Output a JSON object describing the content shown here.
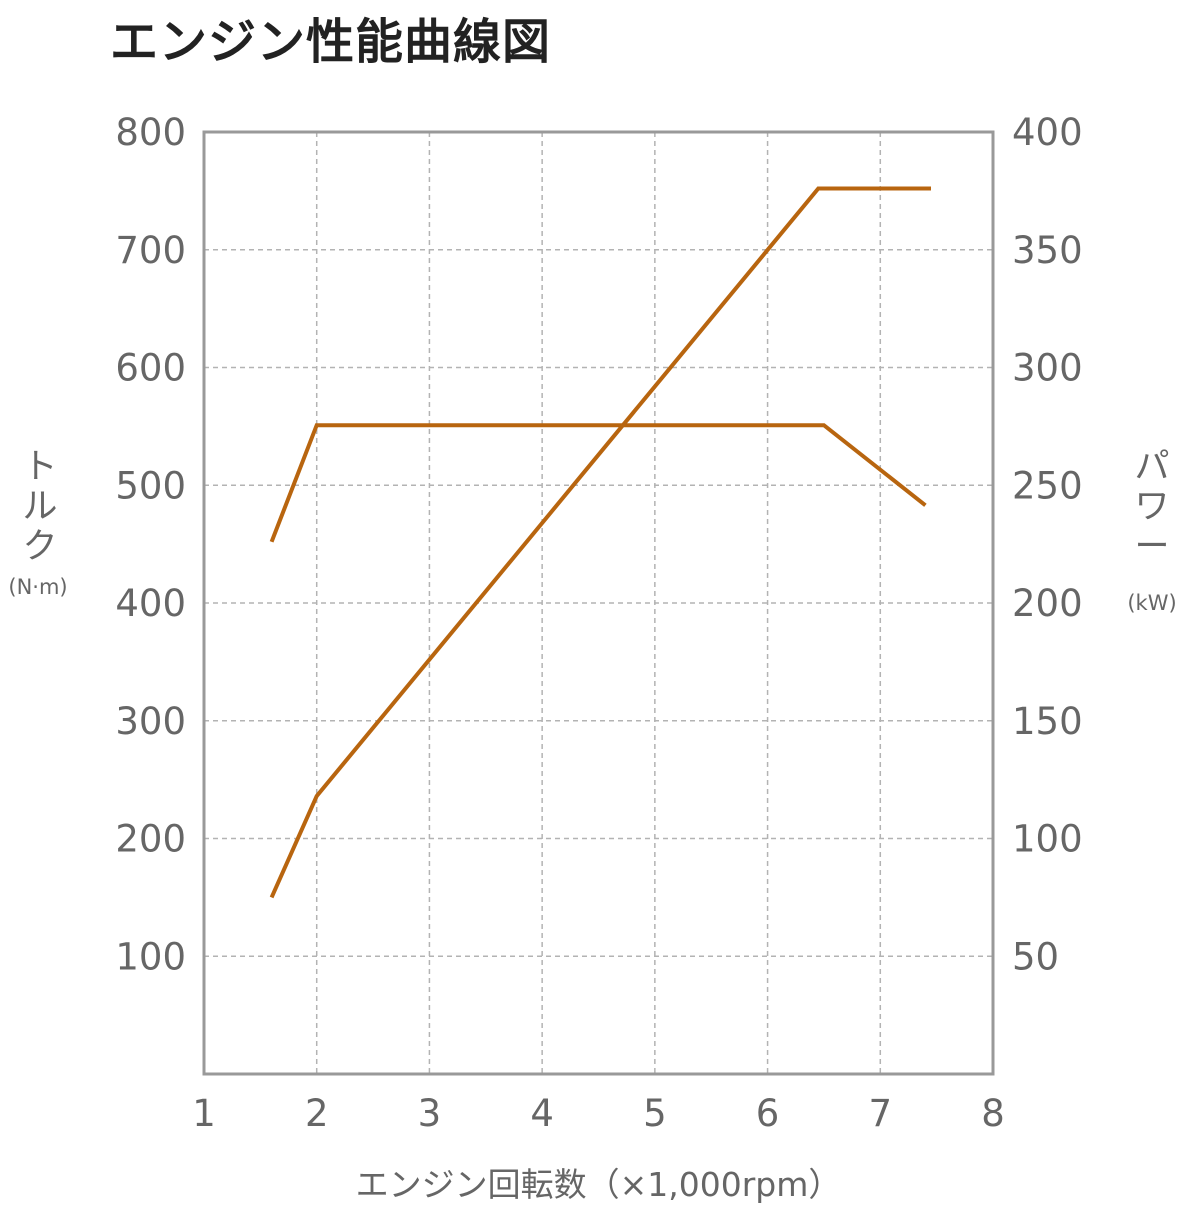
{
  "title": "エンジン性能曲線図",
  "chart_data": {
    "type": "line",
    "title": "エンジン性能曲線図",
    "xlabel": "エンジン回転数（×1,000rpm）",
    "xlim": [
      1,
      8
    ],
    "x_ticks": [
      "1",
      "2",
      "3",
      "4",
      "5",
      "6",
      "7",
      "8"
    ],
    "y_left": {
      "label": "トルク",
      "unit": "(N·m)",
      "lim": [
        0,
        800
      ],
      "ticks": [
        "100",
        "200",
        "300",
        "400",
        "500",
        "600",
        "700",
        "800"
      ]
    },
    "y_right": {
      "label": "パワー",
      "unit": "(kW)",
      "lim": [
        0,
        400
      ],
      "ticks": [
        "50",
        "100",
        "150",
        "200",
        "250",
        "300",
        "350",
        "400"
      ]
    },
    "grid": true,
    "line_color": "#b8650f",
    "series": [
      {
        "axis": "left",
        "points": [
          [
            1.6,
            452
          ],
          [
            2.0,
            551
          ],
          [
            6.5,
            551
          ],
          [
            7.4,
            483
          ]
        ]
      },
      {
        "axis": "right",
        "points": [
          [
            1.6,
            75
          ],
          [
            2.0,
            118
          ],
          [
            6.45,
            376
          ],
          [
            7.45,
            376
          ]
        ]
      }
    ]
  }
}
